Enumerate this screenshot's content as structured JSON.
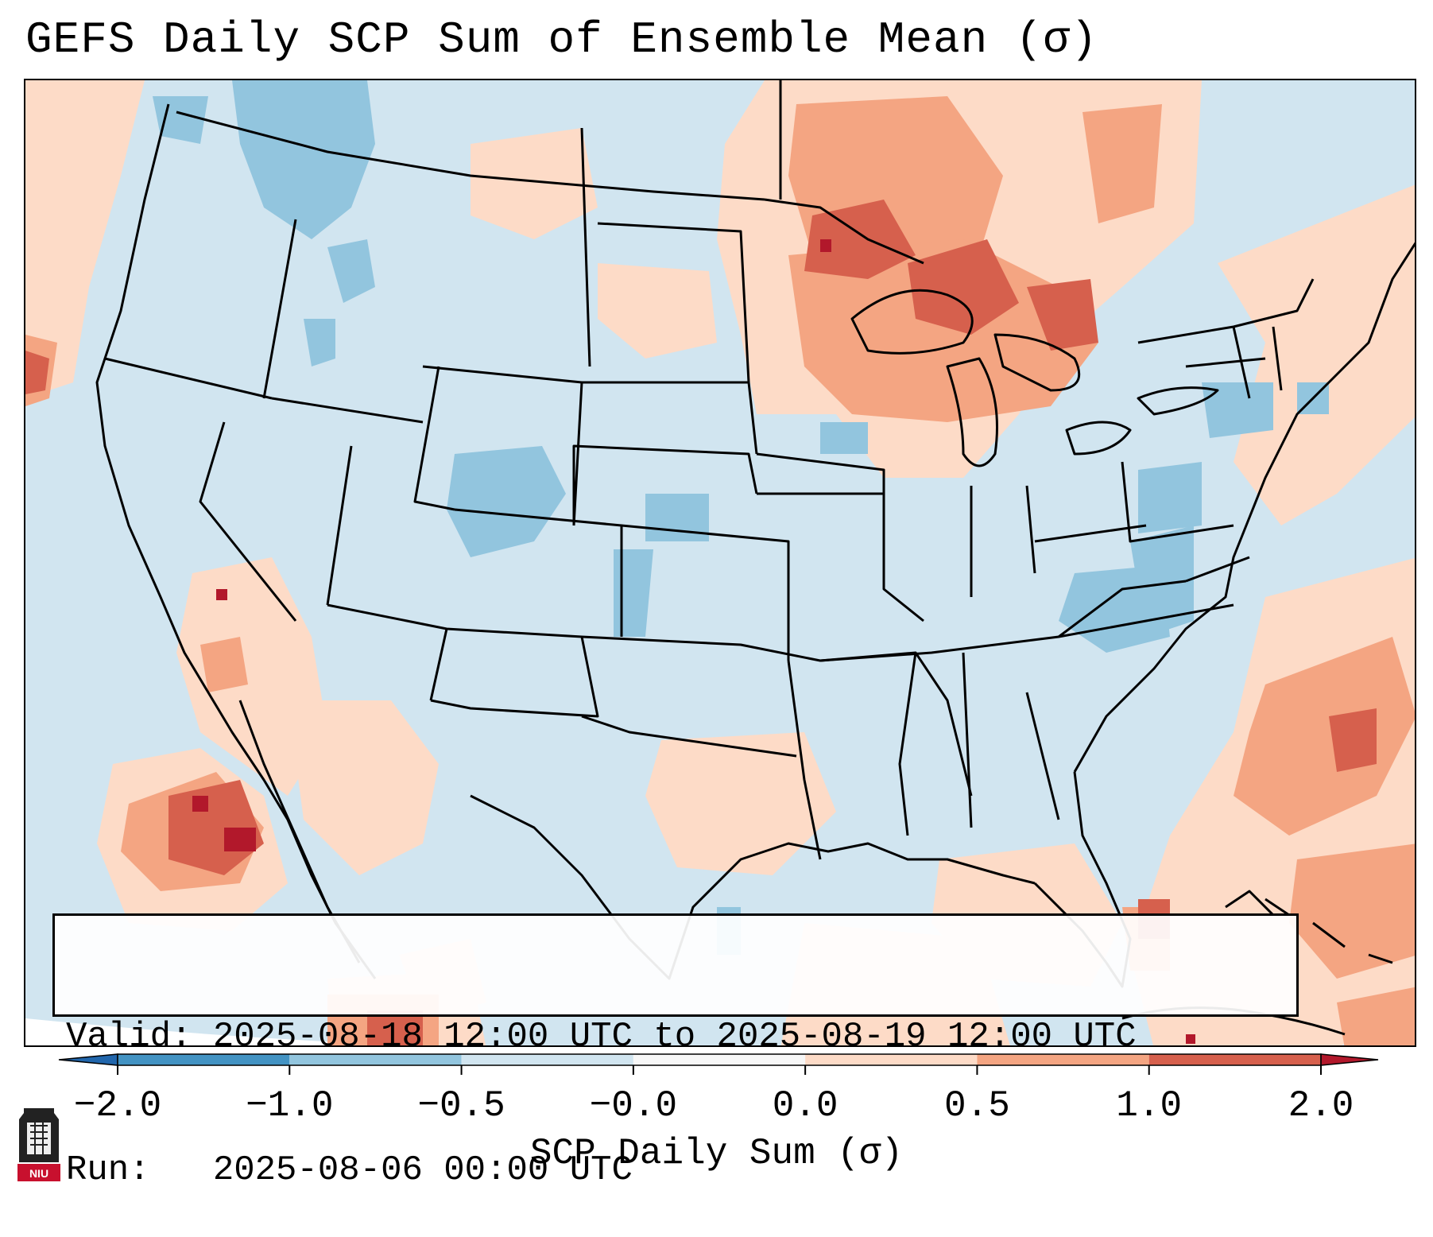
{
  "title": "GEFS Daily SCP Sum of Ensemble Mean (σ)",
  "info": {
    "valid_line": "Valid: 2025-08-18 12:00 UTC to 2025-08-19 12:00 UTC",
    "run_line": "Run:   2025-08-06 00:00 UTC"
  },
  "colorbar": {
    "label": "SCP Daily Sum (σ)",
    "ticks": [
      "−2.0",
      "−1.0",
      "−0.5",
      "−0.0",
      "0.0",
      "0.5",
      "1.0",
      "2.0"
    ],
    "colors": [
      "#2166ac",
      "#4393c3",
      "#92c5de",
      "#d1e5f0",
      "#f7f7f7",
      "#fddbc7",
      "#f4a582",
      "#d6604d",
      "#b2182b"
    ]
  },
  "logo": {
    "text": "NIU",
    "icon": "university-tower-logo-icon"
  },
  "map": {
    "background_class": "-0.5 to -0.0",
    "features": [
      "Pacific Northwest negative anomaly",
      "Upper Midwest / Great Lakes positive anomaly",
      "Gulf of California positive anomaly",
      "Western Atlantic positive anomaly",
      "Mid-Atlantic negative anomaly"
    ]
  }
}
